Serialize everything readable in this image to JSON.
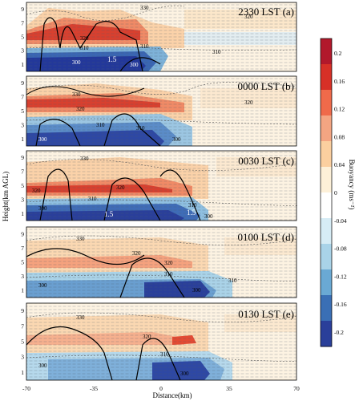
{
  "figure": {
    "ylabel": "Height(km AGL)",
    "xlabel": "Distance(km)",
    "colorbar_label": "Buoyancy (ms⁻²)",
    "colorbar_ticks": [
      "0.2",
      "0.16",
      "0.12",
      "0.08",
      "0.04",
      "0",
      "-0.04",
      "-0.08",
      "-0.12",
      "-0.16",
      "-0.2"
    ],
    "colorbar_colors": [
      "#b2182b",
      "#d73027",
      "#ef6a4a",
      "#f4a582",
      "#fbcf9f",
      "#fdf0d8",
      "#ffffff",
      "#d6ecf5",
      "#a9d3e8",
      "#6aa9d4",
      "#3a6fb5",
      "#2a3f9a"
    ],
    "x_ticks": [
      "-70",
      "-35",
      "0",
      "35",
      "70"
    ],
    "y_ticks": [
      "1",
      "3",
      "5",
      "7",
      "9"
    ],
    "panels": [
      {
        "title": "2330 LST (a)",
        "contours": [
          "330",
          "320",
          "310",
          "310",
          "300",
          "300",
          "320",
          "310"
        ],
        "labels_15": [
          "1.5"
        ]
      },
      {
        "title": "0000 LST (b)",
        "contours": [
          "330",
          "320",
          "310",
          "310",
          "300",
          "300",
          "320"
        ],
        "labels_15": []
      },
      {
        "title": "0030 LST (c)",
        "contours": [
          "330",
          "320",
          "320",
          "310",
          "310",
          "300",
          "300"
        ],
        "labels_15": [
          "1.5",
          "1.5"
        ]
      },
      {
        "title": "0100 LST (d)",
        "contours": [
          "330",
          "320",
          "320",
          "310",
          "310",
          "300",
          "300"
        ],
        "labels_15": []
      },
      {
        "title": "0130 LST (e)",
        "contours": [
          "330",
          "320",
          "310",
          "300",
          "300"
        ],
        "labels_15": []
      }
    ]
  }
}
